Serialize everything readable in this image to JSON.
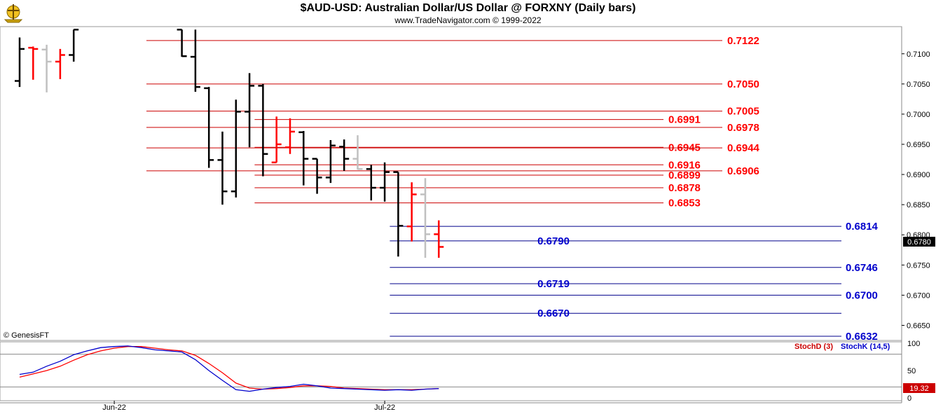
{
  "header": {
    "title": "$AUD-USD:  Australian Dollar/US Dollar @ FORXNY  (Daily bars)",
    "subtitle": "www.TradeNavigator.com © 1999-2022"
  },
  "credit": "© GenesisFT",
  "colors": {
    "red": "#ff0000",
    "blue": "#0000cc",
    "black": "#000000",
    "gray": "#c0c0c0",
    "red_line": "#cc0000",
    "blue_line": "#00008b"
  },
  "chart_data": [
    {
      "type": "ohlc",
      "title": "$AUD-USD:  Australian Dollar/US Dollar @ FORXNY  (Daily bars)",
      "ylim": [
        0.6625,
        0.7145
      ],
      "y_ticks": [
        "0.7100",
        "0.7050",
        "0.7000",
        "0.6950",
        "0.6900",
        "0.6850",
        "0.6800",
        "0.6750",
        "0.6700",
        "0.6650"
      ],
      "last_price": "0.6780",
      "x_labels": [
        {
          "label": "Jun-22",
          "index": 7
        },
        {
          "label": "Jul-22",
          "index": 27
        }
      ],
      "bars": [
        {
          "i": 0,
          "o": 0.7055,
          "h": 0.7127,
          "l": 0.7045,
          "c": 0.7108,
          "color": "black"
        },
        {
          "i": 1,
          "o": 0.711,
          "h": 0.7112,
          "l": 0.7057,
          "c": 0.7108,
          "color": "red"
        },
        {
          "i": 2,
          "o": 0.7107,
          "h": 0.7115,
          "l": 0.7036,
          "c": 0.7087,
          "color": "gray"
        },
        {
          "i": 3,
          "o": 0.7087,
          "h": 0.7108,
          "l": 0.7058,
          "c": 0.7098,
          "color": "red"
        },
        {
          "i": 4,
          "o": 0.7098,
          "h": 0.714,
          "l": 0.7087,
          "c": 0.714,
          "color": "black"
        },
        {
          "i": 12,
          "o": 0.714,
          "h": 0.714,
          "l": 0.7095,
          "c": 0.7096,
          "color": "black"
        },
        {
          "i": 13,
          "o": 0.7095,
          "h": 0.714,
          "l": 0.7037,
          "c": 0.7045,
          "color": "black"
        },
        {
          "i": 14,
          "o": 0.7043,
          "h": 0.7045,
          "l": 0.6911,
          "c": 0.6924,
          "color": "black"
        },
        {
          "i": 15,
          "o": 0.6924,
          "h": 0.6971,
          "l": 0.685,
          "c": 0.6872,
          "color": "black"
        },
        {
          "i": 16,
          "o": 0.6872,
          "h": 0.7024,
          "l": 0.6862,
          "c": 0.7004,
          "color": "black"
        },
        {
          "i": 17,
          "o": 0.7004,
          "h": 0.7068,
          "l": 0.6945,
          "c": 0.7047,
          "color": "black"
        },
        {
          "i": 18,
          "o": 0.7047,
          "h": 0.705,
          "l": 0.6897,
          "c": 0.6934,
          "color": "black"
        },
        {
          "i": 19,
          "o": 0.692,
          "h": 0.6996,
          "l": 0.692,
          "c": 0.695,
          "color": "red"
        },
        {
          "i": 20,
          "o": 0.6945,
          "h": 0.6993,
          "l": 0.6934,
          "c": 0.6971,
          "color": "red"
        },
        {
          "i": 21,
          "o": 0.697,
          "h": 0.6972,
          "l": 0.6882,
          "c": 0.6926,
          "color": "black"
        },
        {
          "i": 22,
          "o": 0.6926,
          "h": 0.6926,
          "l": 0.6868,
          "c": 0.6895,
          "color": "black"
        },
        {
          "i": 23,
          "o": 0.6895,
          "h": 0.6957,
          "l": 0.6886,
          "c": 0.6948,
          "color": "black"
        },
        {
          "i": 24,
          "o": 0.6946,
          "h": 0.6958,
          "l": 0.6906,
          "c": 0.6926,
          "color": "black"
        },
        {
          "i": 25,
          "o": 0.6926,
          "h": 0.6965,
          "l": 0.6908,
          "c": 0.6909,
          "color": "gray"
        },
        {
          "i": 26,
          "o": 0.6909,
          "h": 0.6916,
          "l": 0.6857,
          "c": 0.6878,
          "color": "black"
        },
        {
          "i": 27,
          "o": 0.6878,
          "h": 0.692,
          "l": 0.6855,
          "c": 0.6904,
          "color": "black"
        },
        {
          "i": 28,
          "o": 0.6904,
          "h": 0.6904,
          "l": 0.6764,
          "c": 0.6815,
          "color": "black"
        },
        {
          "i": 29,
          "o": 0.6814,
          "h": 0.6887,
          "l": 0.6789,
          "c": 0.6867,
          "color": "red"
        },
        {
          "i": 30,
          "o": 0.6867,
          "h": 0.6894,
          "l": 0.6762,
          "c": 0.6801,
          "color": "gray"
        },
        {
          "i": 31,
          "o": 0.6801,
          "h": 0.6824,
          "l": 0.6762,
          "c": 0.678,
          "color": "red"
        }
      ],
      "levels": [
        {
          "value": 0.7122,
          "label": "0.7122",
          "color": "red",
          "x_from": 10,
          "label_pos": "right"
        },
        {
          "value": 0.705,
          "label": "0.7050",
          "color": "red",
          "x_from": 10,
          "label_pos": "right"
        },
        {
          "value": 0.7005,
          "label": "0.7005",
          "color": "red",
          "x_from": 10,
          "label_pos": "right"
        },
        {
          "value": 0.6991,
          "label": "0.6991",
          "color": "red",
          "x_from": 18,
          "label_pos": "mid"
        },
        {
          "value": 0.6978,
          "label": "0.6978",
          "color": "red",
          "x_from": 10,
          "label_pos": "right"
        },
        {
          "value": 0.6945,
          "label": "0.6945",
          "color": "red",
          "x_from": 18,
          "label_pos": "mid"
        },
        {
          "value": 0.6944,
          "label": "0.6944",
          "color": "red",
          "x_from": 10,
          "label_pos": "right"
        },
        {
          "value": 0.6916,
          "label": "0.6916",
          "color": "red",
          "x_from": 18,
          "label_pos": "mid"
        },
        {
          "value": 0.6906,
          "label": "0.6906",
          "color": "red",
          "x_from": 10,
          "label_pos": "right"
        },
        {
          "value": 0.6899,
          "label": "0.6899",
          "color": "red",
          "x_from": 18,
          "label_pos": "mid"
        },
        {
          "value": 0.6878,
          "label": "0.6878",
          "color": "red",
          "x_from": 18,
          "label_pos": "mid"
        },
        {
          "value": 0.6853,
          "label": "0.6853",
          "color": "red",
          "x_from": 18,
          "label_pos": "mid"
        },
        {
          "value": 0.6814,
          "label": "0.6814",
          "color": "blue",
          "x_from": 28,
          "label_pos": "far"
        },
        {
          "value": 0.679,
          "label": "0.6790",
          "color": "blue",
          "x_from": 28,
          "label_pos": "left"
        },
        {
          "value": 0.6746,
          "label": "0.6746",
          "color": "blue",
          "x_from": 28,
          "label_pos": "far"
        },
        {
          "value": 0.6719,
          "label": "0.6719",
          "color": "blue",
          "x_from": 28,
          "label_pos": "left"
        },
        {
          "value": 0.67,
          "label": "0.6700",
          "color": "blue",
          "x_from": 28,
          "label_pos": "far"
        },
        {
          "value": 0.667,
          "label": "0.6670",
          "color": "blue",
          "x_from": 28,
          "label_pos": "left"
        },
        {
          "value": 0.6632,
          "label": "0.6632",
          "color": "blue",
          "x_from": 28,
          "label_pos": "far"
        }
      ]
    },
    {
      "type": "line",
      "title": "Stochastic",
      "ylim": [
        0,
        100
      ],
      "y_ticks": [
        "100",
        "50",
        "0"
      ],
      "reference_lines": [
        80,
        20
      ],
      "last_value": "19.32",
      "legend": [
        {
          "name": "StochD (3)",
          "color": "red"
        },
        {
          "name": "StochK (14,5)",
          "color": "blue"
        }
      ],
      "x": [
        0,
        1,
        2,
        3,
        4,
        5,
        6,
        7,
        8,
        9,
        10,
        11,
        12,
        13,
        14,
        15,
        16,
        17,
        18,
        19,
        20,
        21,
        22,
        23,
        24,
        25,
        26,
        27,
        28,
        29,
        30,
        31
      ],
      "series": [
        {
          "name": "StochK (14,5)",
          "color": "blue",
          "values": [
            43,
            47,
            58,
            67,
            79,
            86,
            92,
            94,
            95,
            92,
            88,
            86,
            84,
            70,
            50,
            32,
            15,
            12,
            16,
            19,
            21,
            25,
            22,
            18,
            17,
            16,
            15,
            14,
            15,
            14,
            16,
            17
          ]
        },
        {
          "name": "StochD (3)",
          "color": "red",
          "values": [
            38,
            44,
            50,
            58,
            69,
            79,
            86,
            91,
            94,
            94,
            91,
            88,
            86,
            78,
            63,
            46,
            27,
            18,
            16,
            17,
            19,
            22,
            22,
            21,
            18,
            17,
            16,
            15,
            15,
            15,
            16,
            17
          ]
        }
      ]
    }
  ]
}
